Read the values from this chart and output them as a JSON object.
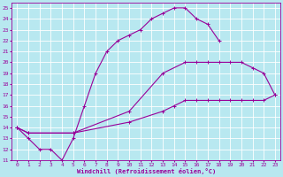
{
  "xlabel": "Windchill (Refroidissement éolien,°C)",
  "bg_color": "#b8e8f0",
  "grid_color": "#ffffff",
  "line_color": "#990099",
  "xlim": [
    -0.5,
    23.5
  ],
  "ylim": [
    11,
    25.5
  ],
  "xticks": [
    0,
    1,
    2,
    3,
    4,
    5,
    6,
    7,
    8,
    9,
    10,
    11,
    12,
    13,
    14,
    15,
    16,
    17,
    18,
    19,
    20,
    21,
    22,
    23
  ],
  "yticks": [
    11,
    12,
    13,
    14,
    15,
    16,
    17,
    18,
    19,
    20,
    21,
    22,
    23,
    24,
    25
  ],
  "line1_x": [
    0,
    1,
    2,
    3,
    4,
    5,
    6,
    7,
    8,
    9,
    10,
    11,
    12,
    13,
    14,
    15,
    16,
    17,
    18
  ],
  "line1_y": [
    14,
    13,
    12,
    12,
    11,
    13,
    16,
    19,
    21,
    22,
    22.5,
    23,
    24,
    24.5,
    25,
    25,
    24,
    23.5,
    22
  ],
  "line2_x": [
    0,
    1,
    5,
    10,
    13,
    15,
    16,
    17,
    18,
    19,
    20,
    21,
    22,
    23
  ],
  "line2_y": [
    14,
    13.5,
    13.5,
    15.5,
    19,
    20,
    20,
    20,
    20,
    20,
    20,
    19.5,
    19,
    17
  ],
  "line3_x": [
    0,
    1,
    5,
    10,
    13,
    14,
    15,
    16,
    17,
    18,
    19,
    20,
    21,
    22,
    23
  ],
  "line3_y": [
    14,
    13.5,
    13.5,
    14.5,
    15.5,
    16,
    16.5,
    16.5,
    16.5,
    16.5,
    16.5,
    16.5,
    16.5,
    16.5,
    17
  ]
}
